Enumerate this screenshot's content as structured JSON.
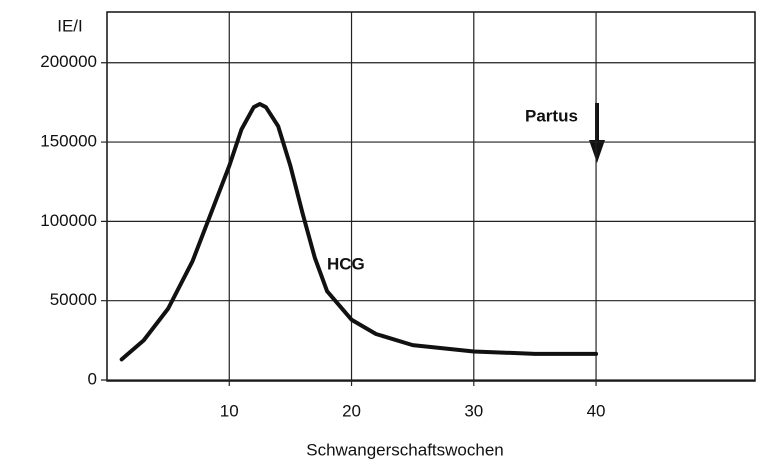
{
  "chart_data": {
    "type": "line",
    "y_axis_label": "IE/I",
    "x_axis_label": "Schwangerschaftswochen",
    "annotations": [
      "HCG",
      "Partus"
    ],
    "x": [
      1.2,
      3,
      5,
      7,
      9,
      10,
      11,
      12,
      12.5,
      13,
      14,
      15,
      16,
      17,
      18,
      20,
      22,
      25,
      30,
      35,
      40
    ],
    "series": [
      {
        "name": "HCG",
        "color": "#111111",
        "values": [
          13000,
          25000,
          45000,
          75000,
          115000,
          135000,
          158000,
          172000,
          174000,
          172000,
          160000,
          135000,
          105000,
          77000,
          56000,
          38000,
          29000,
          22000,
          18000,
          16500,
          16500
        ]
      }
    ],
    "xlim": [
      0,
      53
    ],
    "xticks": [
      10,
      20,
      30,
      40
    ],
    "ylim": [
      0,
      232000
    ],
    "yticks": [
      0,
      50000,
      100000,
      150000,
      200000
    ],
    "grid": true
  }
}
